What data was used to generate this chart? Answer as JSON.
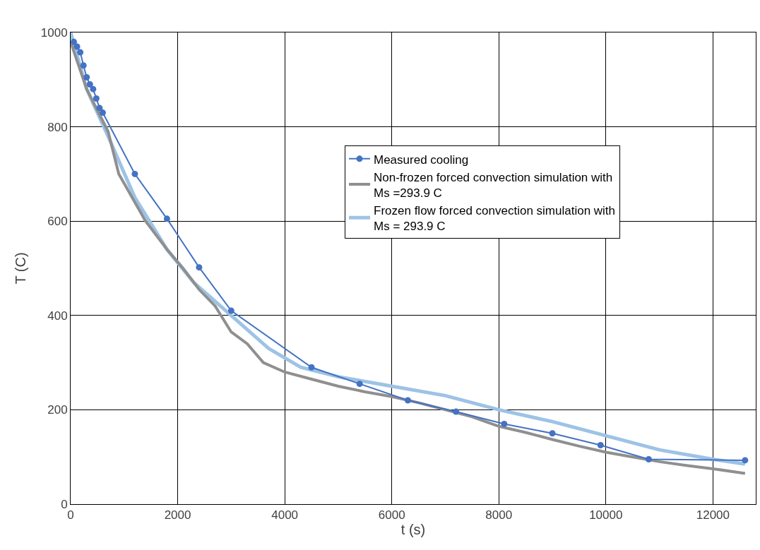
{
  "chart_data": {
    "type": "line",
    "xlabel": "t (s)",
    "ylabel": "T (C)",
    "xlim": [
      0,
      12800
    ],
    "xticks": [
      0,
      2000,
      4000,
      6000,
      8000,
      10000,
      12000
    ],
    "ylim": [
      0,
      1000
    ],
    "yticks": [
      0,
      200,
      400,
      600,
      800,
      1000
    ],
    "grid": true,
    "legend": "right",
    "series": [
      {
        "name": "Measured cooling",
        "color": "#4472c4",
        "marker": "circle",
        "x": [
          60,
          120,
          180,
          240,
          300,
          360,
          420,
          480,
          540,
          600,
          1200,
          1800,
          2400,
          3000,
          4500,
          5400,
          6300,
          7200,
          8100,
          9000,
          9900,
          10800,
          12600
        ],
        "values": [
          980,
          970,
          958,
          930,
          905,
          890,
          880,
          860,
          840,
          830,
          700,
          605,
          502,
          410,
          290,
          255,
          220,
          196,
          170,
          150,
          125,
          95,
          93
        ]
      },
      {
        "name": "Non-frozen forced convection simulation with\nMs =293.9 C",
        "color": "#8f8f8f",
        "marker": "none",
        "x": [
          0,
          300,
          700,
          900,
          1200,
          1400,
          1800,
          2100,
          2400,
          2700,
          3000,
          3300,
          3600,
          4000,
          4500,
          5000,
          5500,
          6000,
          6500,
          7000,
          7500,
          8000,
          8500,
          9000,
          9500,
          10000,
          10500,
          11000,
          11500,
          12000,
          12600
        ],
        "values": [
          980,
          880,
          790,
          700,
          640,
          600,
          540,
          500,
          455,
          420,
          365,
          340,
          300,
          280,
          265,
          250,
          238,
          228,
          215,
          200,
          185,
          165,
          152,
          137,
          123,
          110,
          100,
          90,
          82,
          75,
          65
        ]
      },
      {
        "name": "Frozen flow forced convection simulation with\nMs = 293.9 C",
        "color": "#9dc3e6",
        "marker": "none",
        "x": [
          0,
          300,
          700,
          1200,
          1800,
          2300,
          3000,
          3700,
          4300,
          5000,
          6000,
          7000,
          8000,
          9000,
          10000,
          11000,
          12000,
          12600
        ],
        "values": [
          1000,
          880,
          780,
          650,
          540,
          470,
          400,
          330,
          290,
          270,
          250,
          230,
          200,
          175,
          145,
          115,
          95,
          85
        ]
      }
    ]
  }
}
